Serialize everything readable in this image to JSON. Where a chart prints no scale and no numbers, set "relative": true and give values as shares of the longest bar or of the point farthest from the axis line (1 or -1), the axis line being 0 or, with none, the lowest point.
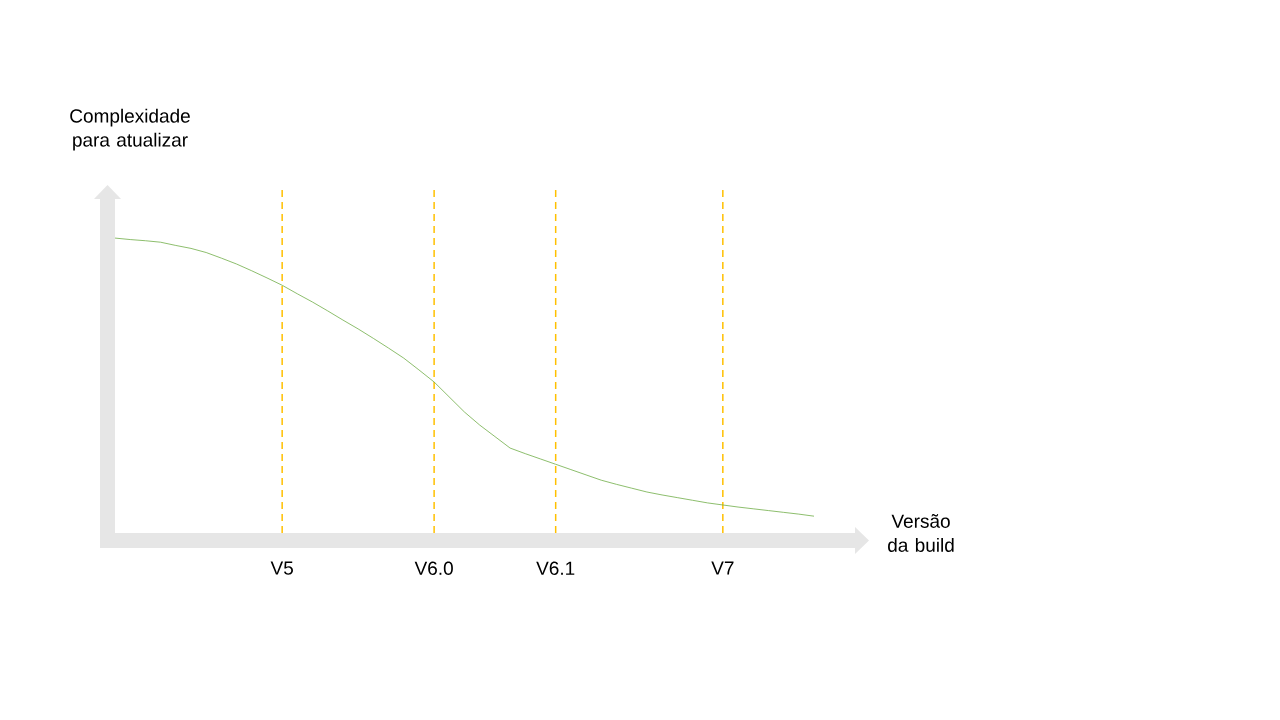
{
  "chart_data": {
    "type": "line",
    "relative": true,
    "xlabel": "Versão da build",
    "ylabel": "Complexidade para atualizar",
    "tick_labels": "x",
    "grid": "x",
    "marker": "none",
    "line_style": "solid",
    "categories": [
      null,
      null,
      null,
      null,
      null,
      null,
      null,
      null,
      null,
      null,
      null,
      "V5",
      null,
      null,
      null,
      null,
      null,
      null,
      null,
      null,
      null,
      "V6.0",
      null,
      null,
      null,
      null,
      null,
      null,
      null,
      "V6.1",
      null,
      null,
      null,
      null,
      null,
      null,
      null,
      null,
      null,
      null,
      "V7",
      null,
      null,
      null,
      null,
      null,
      null
    ],
    "series": [
      {
        "color": "#70ad47",
        "values": [
          1.0,
          0.995,
          0.991,
          0.986,
          0.975,
          0.965,
          0.951,
          0.932,
          0.912,
          0.889,
          0.865,
          0.84,
          0.811,
          0.783,
          0.753,
          0.722,
          0.692,
          0.66,
          0.627,
          0.593,
          0.553,
          0.512,
          0.461,
          0.41,
          0.366,
          0.327,
          0.288,
          0.269,
          0.251,
          0.233,
          0.215,
          0.197,
          0.179,
          0.165,
          0.152,
          0.139,
          0.129,
          0.12,
          0.111,
          0.102,
          0.095,
          0.088,
          0.082,
          0.076,
          0.07,
          0.064,
          0.057
        ]
      }
    ]
  }
}
